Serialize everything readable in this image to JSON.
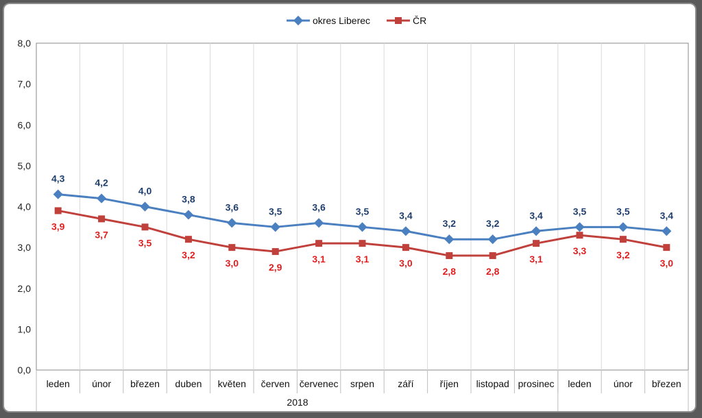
{
  "chart_data": {
    "type": "line",
    "title": "",
    "xlabel": "",
    "ylabel": "",
    "ylim": [
      0,
      8
    ],
    "y_ticks": [
      "0,0",
      "1,0",
      "2,0",
      "3,0",
      "4,0",
      "5,0",
      "6,0",
      "7,0",
      "8,0"
    ],
    "categories": [
      "leden",
      "únor",
      "březen",
      "duben",
      "květen",
      "červen",
      "červenec",
      "srpen",
      "září",
      "říjen",
      "listopad",
      "prosinec",
      "leden",
      "únor",
      "březen"
    ],
    "year_group": {
      "label": "2018",
      "span": 12
    },
    "legend_position": "top-center",
    "gridlines": "vertical",
    "series": [
      {
        "name": "okres Liberec",
        "color": "#4a7fc0",
        "marker": "diamond",
        "values": [
          4.3,
          4.2,
          4.0,
          3.8,
          3.6,
          3.5,
          3.6,
          3.5,
          3.4,
          3.2,
          3.2,
          3.4,
          3.5,
          3.5,
          3.4
        ],
        "labels": [
          "4,3",
          "4,2",
          "4,0",
          "3,8",
          "3,6",
          "3,5",
          "3,6",
          "3,5",
          "3,4",
          "3,2",
          "3,2",
          "3,4",
          "3,5",
          "3,5",
          "3,4"
        ]
      },
      {
        "name": "ČR",
        "color": "#c0403c",
        "marker": "square",
        "values": [
          3.9,
          3.7,
          3.5,
          3.2,
          3.0,
          2.9,
          3.1,
          3.1,
          3.0,
          2.8,
          2.8,
          3.1,
          3.3,
          3.2,
          3.0
        ],
        "labels": [
          "3,9",
          "3,7",
          "3,5",
          "3,2",
          "3,0",
          "2,9",
          "3,1",
          "3,1",
          "3,0",
          "2,8",
          "2,8",
          "3,1",
          "3,3",
          "3,2",
          "3,0"
        ]
      }
    ]
  }
}
